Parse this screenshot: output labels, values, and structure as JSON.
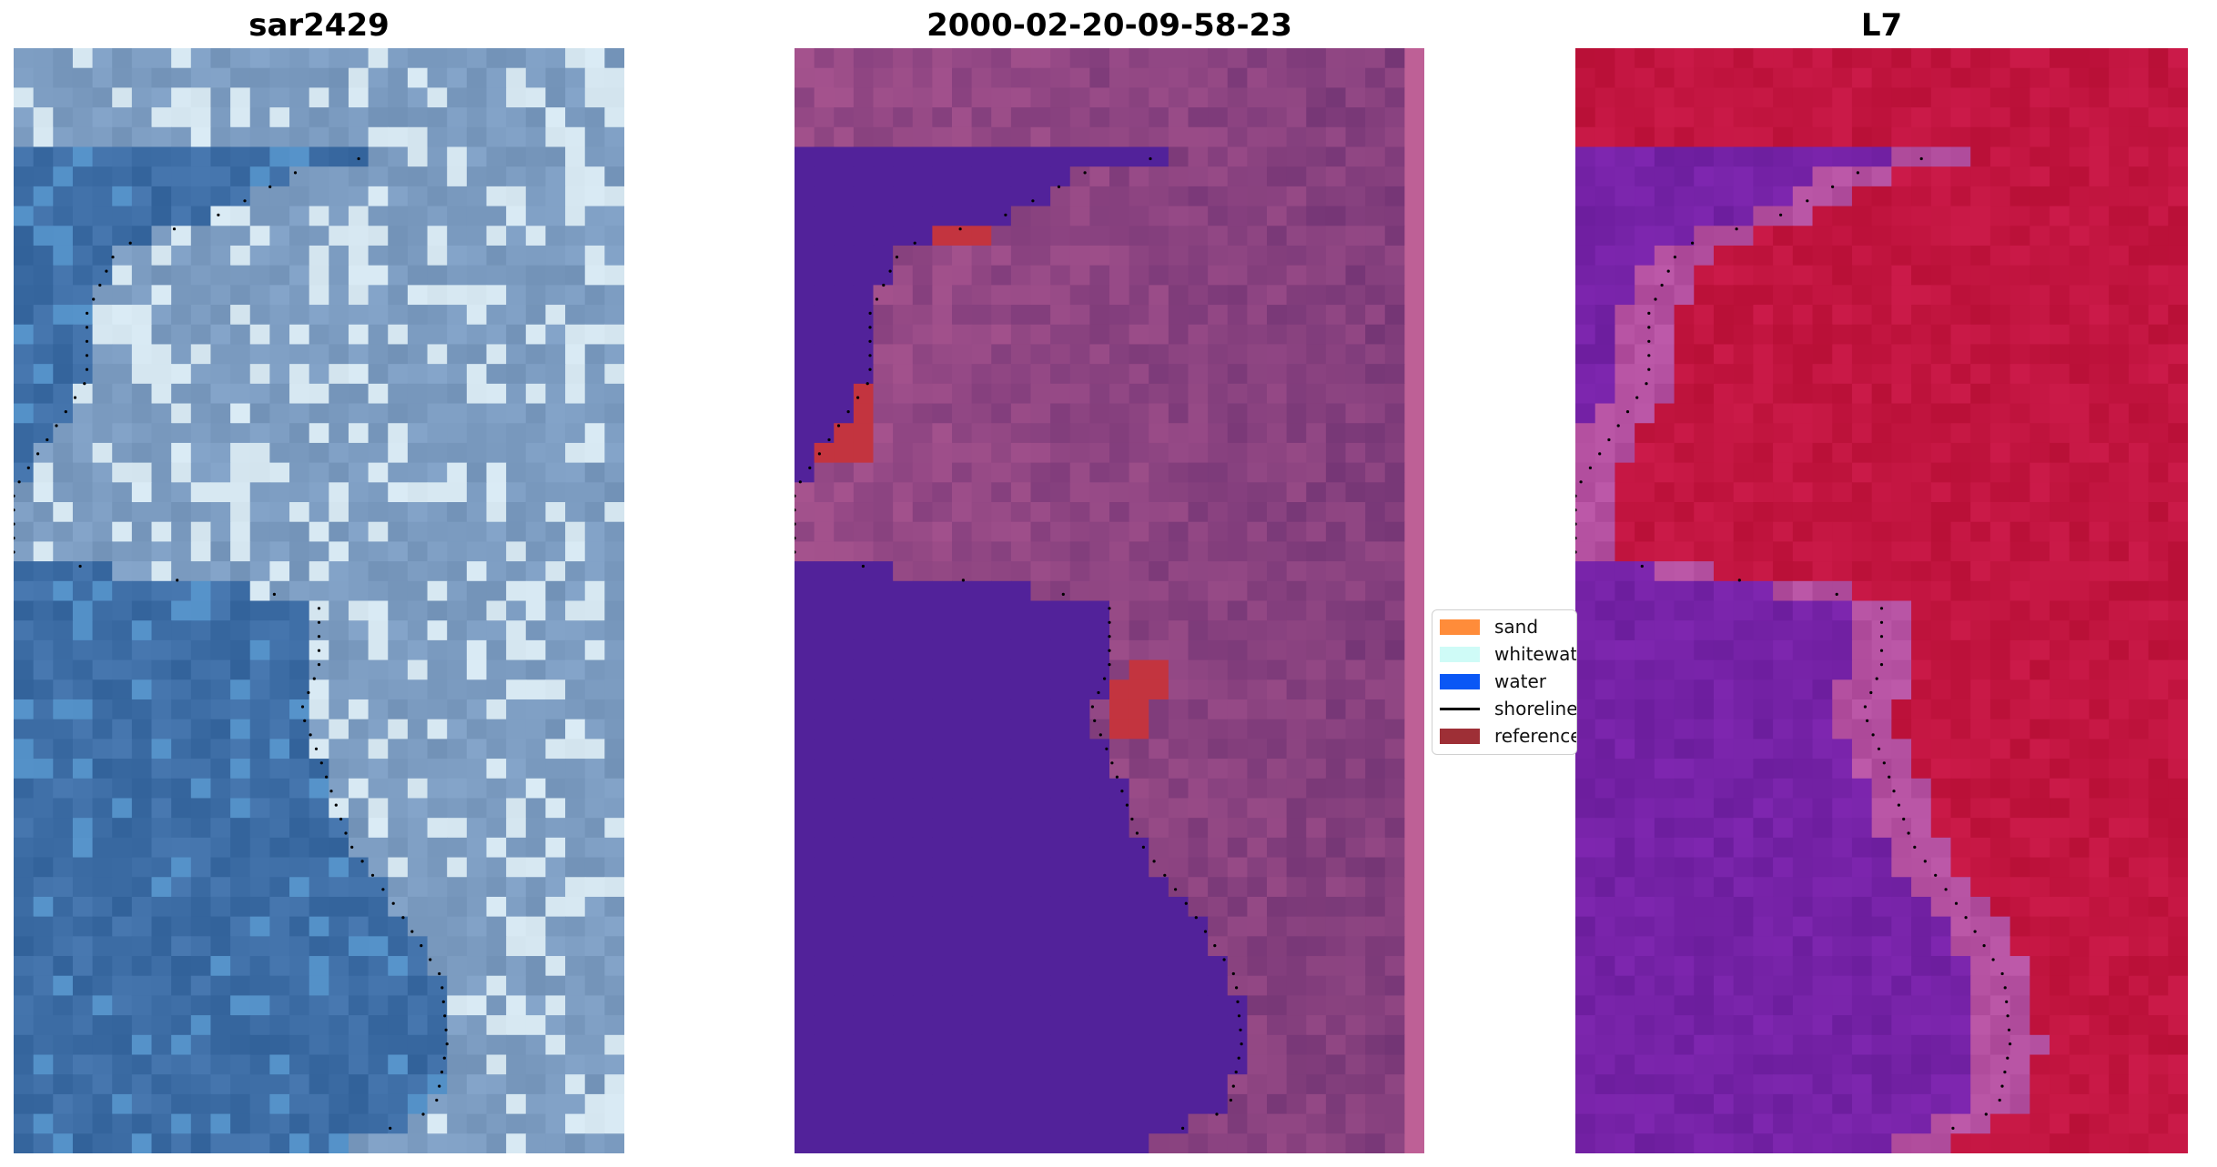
{
  "panels": [
    {
      "title": "sar2429"
    },
    {
      "title": "2000-02-20-09-58-23"
    },
    {
      "title": "L7"
    }
  ],
  "legend": {
    "items": [
      {
        "label": "sand",
        "color": "#ff8c3a",
        "kind": "patch"
      },
      {
        "label": "whitewater",
        "color": "#cffbf7",
        "kind": "patch"
      },
      {
        "label": "water",
        "color": "#0a57f5",
        "kind": "patch"
      },
      {
        "label": "shoreline",
        "color": "#000000",
        "kind": "line"
      },
      {
        "label": "reference",
        "color": "#9e2f36",
        "kind": "patch"
      }
    ]
  },
  "colors": {
    "rgb_water": "#3f6fa7",
    "rgb_land": "#7f9fc4",
    "class_water": "#52229a",
    "class_land": "#9a4c88",
    "class_reference": "#c3343f",
    "ndwi_water": "#7522a6",
    "ndwi_land": "#c21540"
  }
}
